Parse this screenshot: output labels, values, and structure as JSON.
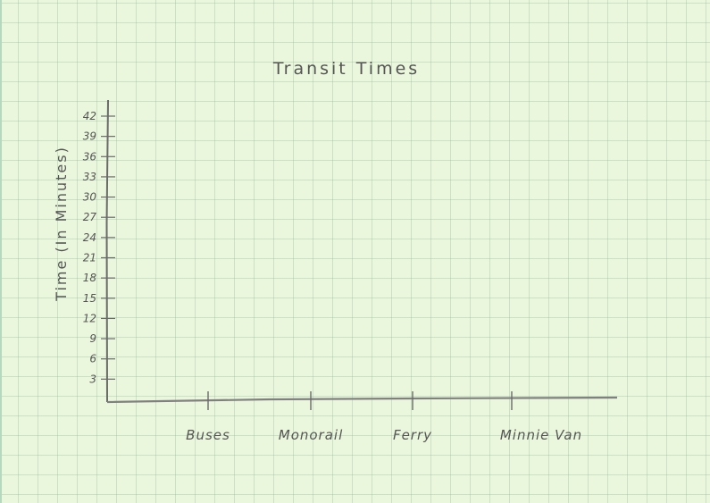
{
  "chart_data": {
    "type": "bar",
    "title": "Transit Times",
    "xlabel": "",
    "ylabel": "Time (In Minutes)",
    "categories": [
      "Buses",
      "Monorail",
      "Ferry",
      "Minnie Van"
    ],
    "yticks": [
      "3",
      "6",
      "9",
      "12",
      "15",
      "18",
      "21",
      "24",
      "27",
      "30",
      "33",
      "36",
      "39",
      "42"
    ],
    "ylim": [
      0,
      42
    ],
    "grid": true,
    "series": []
  },
  "colors": {
    "paper": "#eaf7dc",
    "grid": "#9fc8ad",
    "pencil": "#555555"
  }
}
